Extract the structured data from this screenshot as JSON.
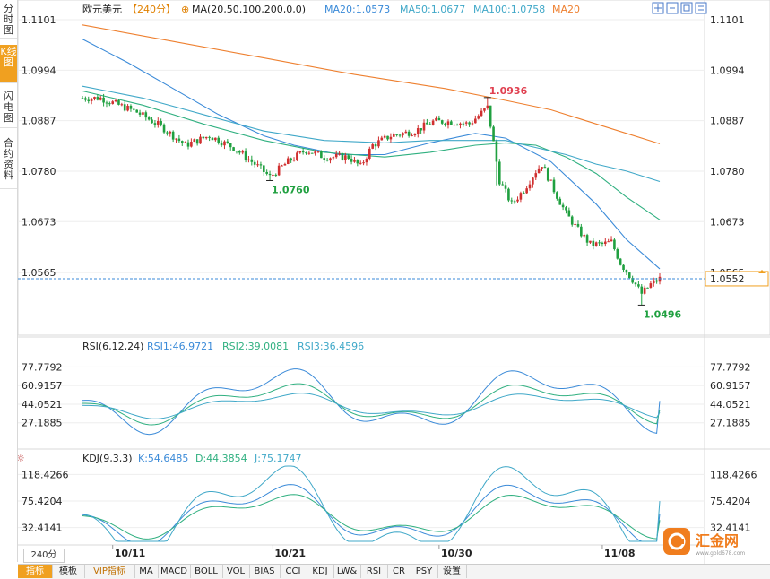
{
  "sidebar": {
    "tabs": [
      {
        "label": "分时图",
        "active": false
      },
      {
        "label": "K线图",
        "active": true
      },
      {
        "label": "闪电图",
        "active": false
      },
      {
        "label": "合约资料",
        "active": false
      }
    ]
  },
  "header": {
    "symbol": "欧元美元",
    "period": "【240分】",
    "ma_spec": "MA(20,50,100,200,0,0)",
    "ma20": "MA20:1.0573",
    "ma50": "MA50:1.0677",
    "ma100": "MA100:1.0758",
    "ma200": "MA20"
  },
  "rsi_header": {
    "name": "RSI(6,12,24)",
    "rsi1": "RSI1:46.9721",
    "rsi2": "RSI2:39.0081",
    "rsi3": "RSI3:36.4596"
  },
  "kdj_header": {
    "name": "KDJ(9,3,3)",
    "k": "K:54.6485",
    "d": "D:44.3854",
    "j": "J:75.1747"
  },
  "colors": {
    "up": "#d03030",
    "down": "#20a040",
    "ma20": "#3a8ad8",
    "ma50": "#30b080",
    "ma100": "#40a8c8",
    "ma200": "#ee8030",
    "rsi1": "#3a8ad8",
    "rsi2": "#30b080",
    "rsi3": "#40a8c8"
  },
  "chart_data": [
    {
      "type": "candlestick",
      "title": "欧元美元【240分】",
      "ylim": [
        1.0455,
        1.1101
      ],
      "yticks": [
        "1.1101",
        "1.0994",
        "1.0887",
        "1.0780",
        "1.0673",
        "1.0565"
      ],
      "xticks": [
        "10/11",
        "10/21",
        "10/30",
        "11/08"
      ],
      "last_price": "1.0552",
      "annotations": [
        {
          "label": "1.0936",
          "value": 1.0936
        },
        {
          "label": "1.0760",
          "value": 1.076
        },
        {
          "label": "1.0496",
          "value": 1.0496
        }
      ],
      "anchors": [
        {
          "i": 0,
          "v": 1.0935
        },
        {
          "i": 6,
          "v": 1.0935
        },
        {
          "i": 10,
          "v": 1.0925
        },
        {
          "i": 18,
          "v": 1.0905
        },
        {
          "i": 26,
          "v": 1.0875
        },
        {
          "i": 34,
          "v": 1.0835
        },
        {
          "i": 42,
          "v": 1.0855
        },
        {
          "i": 50,
          "v": 1.083
        },
        {
          "i": 58,
          "v": 1.079
        },
        {
          "i": 62,
          "v": 1.0768
        },
        {
          "i": 68,
          "v": 1.08
        },
        {
          "i": 74,
          "v": 1.0825
        },
        {
          "i": 80,
          "v": 1.081
        },
        {
          "i": 88,
          "v": 1.081
        },
        {
          "i": 92,
          "v": 1.079
        },
        {
          "i": 96,
          "v": 1.0835
        },
        {
          "i": 102,
          "v": 1.0855
        },
        {
          "i": 110,
          "v": 1.0865
        },
        {
          "i": 116,
          "v": 1.0885
        },
        {
          "i": 122,
          "v": 1.0885
        },
        {
          "i": 128,
          "v": 1.088
        },
        {
          "i": 134,
          "v": 1.0915
        },
        {
          "i": 136,
          "v": 1.084
        },
        {
          "i": 138,
          "v": 1.076
        },
        {
          "i": 142,
          "v": 1.071
        },
        {
          "i": 146,
          "v": 1.074
        },
        {
          "i": 150,
          "v": 1.078
        },
        {
          "i": 152,
          "v": 1.0795
        },
        {
          "i": 156,
          "v": 1.074
        },
        {
          "i": 160,
          "v": 1.069
        },
        {
          "i": 164,
          "v": 1.0655
        },
        {
          "i": 168,
          "v": 1.0625
        },
        {
          "i": 172,
          "v": 1.0625
        },
        {
          "i": 175,
          "v": 1.063
        },
        {
          "i": 178,
          "v": 1.0585
        },
        {
          "i": 182,
          "v": 1.055
        },
        {
          "i": 185,
          "v": 1.052
        },
        {
          "i": 188,
          "v": 1.054
        },
        {
          "i": 191,
          "v": 1.0552
        }
      ],
      "ma_series": [
        {
          "name": "MA20",
          "color": "#3a8ad8",
          "points": [
            [
              0,
              1.106
            ],
            [
              15,
              1.101
            ],
            [
              30,
              1.0955
            ],
            [
              45,
              1.09
            ],
            [
              60,
              1.0855
            ],
            [
              70,
              1.0835
            ],
            [
              85,
              1.0815
            ],
            [
              100,
              1.0815
            ],
            [
              115,
              1.084
            ],
            [
              130,
              1.086
            ],
            [
              140,
              1.085
            ],
            [
              155,
              1.08
            ],
            [
              170,
              1.071
            ],
            [
              180,
              1.0635
            ],
            [
              191,
              1.0573
            ]
          ]
        },
        {
          "name": "MA50",
          "color": "#30b080",
          "points": [
            [
              0,
              1.095
            ],
            [
              20,
              1.092
            ],
            [
              40,
              1.088
            ],
            [
              60,
              1.0845
            ],
            [
              80,
              1.082
            ],
            [
              100,
              1.081
            ],
            [
              115,
              1.082
            ],
            [
              130,
              1.0835
            ],
            [
              140,
              1.084
            ],
            [
              150,
              1.0835
            ],
            [
              160,
              1.081
            ],
            [
              170,
              1.0775
            ],
            [
              180,
              1.0725
            ],
            [
              191,
              1.0677
            ]
          ]
        },
        {
          "name": "MA100",
          "color": "#40a8c8",
          "points": [
            [
              0,
              1.096
            ],
            [
              20,
              1.0935
            ],
            [
              40,
              1.09
            ],
            [
              60,
              1.0865
            ],
            [
              80,
              1.0845
            ],
            [
              100,
              1.084
            ],
            [
              115,
              1.0845
            ],
            [
              130,
              1.0845
            ],
            [
              140,
              1.0845
            ],
            [
              150,
              1.083
            ],
            [
              160,
              1.0815
            ],
            [
              170,
              1.0795
            ],
            [
              180,
              1.078
            ],
            [
              191,
              1.0758
            ]
          ]
        },
        {
          "name": "MA200",
          "color": "#ee8030",
          "points": [
            [
              0,
              1.109
            ],
            [
              30,
              1.1055
            ],
            [
              60,
              1.102
            ],
            [
              90,
              1.0985
            ],
            [
              120,
              1.0955
            ],
            [
              140,
              1.093
            ],
            [
              155,
              1.091
            ],
            [
              170,
              1.088
            ],
            [
              180,
              1.086
            ],
            [
              191,
              1.0838
            ]
          ]
        }
      ]
    },
    {
      "type": "line",
      "title": "RSI(6,12,24)",
      "ylim": [
        14,
        87
      ],
      "yticks": [
        "77.7792",
        "60.9157",
        "44.0521",
        "27.1885"
      ],
      "series": [
        {
          "name": "RSI1",
          "values_end": 46.9721
        },
        {
          "name": "RSI2",
          "values_end": 39.0081
        },
        {
          "name": "RSI3",
          "values_end": 36.4596
        }
      ]
    },
    {
      "type": "line",
      "title": "KDJ(9,3,3)",
      "ylim": [
        10,
        132
      ],
      "yticks": [
        "118.4266",
        "75.4204",
        "32.4141"
      ],
      "series": [
        {
          "name": "K",
          "values_end": 54.6485
        },
        {
          "name": "D",
          "values_end": 44.3854
        },
        {
          "name": "J",
          "values_end": 75.1747
        }
      ]
    }
  ],
  "bottom_bar": {
    "period": "240分",
    "items": [
      "指标",
      "模板",
      "VIP指标",
      "MA",
      "MACD",
      "BOLL",
      "VOL",
      "BIAS",
      "CCI",
      "KDJ",
      "LW&",
      "RSI",
      "CR",
      "PSY",
      "设置"
    ]
  },
  "logo": {
    "text": "汇金网",
    "url": "www.gold678.com"
  }
}
